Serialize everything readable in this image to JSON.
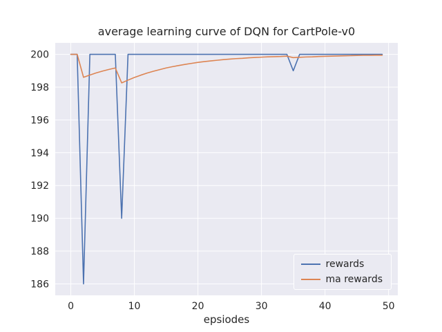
{
  "chart_data": {
    "type": "line",
    "title": "average learning curve of DQN for CartPole-v0",
    "xlabel": "epsiodes",
    "ylabel": "",
    "grid": true,
    "legend_position": "lower right",
    "plot_bg": "#eaeaf2",
    "grid_color": "#ffffff",
    "text_color": "#262626",
    "xlim": [
      -2.45,
      51.45
    ],
    "ylim": [
      185.3,
      200.7
    ],
    "xticks": [
      0,
      10,
      20,
      30,
      40,
      50
    ],
    "yticks": [
      186,
      188,
      190,
      192,
      194,
      196,
      198,
      200
    ],
    "x": [
      0,
      1,
      2,
      3,
      4,
      5,
      6,
      7,
      8,
      9,
      10,
      11,
      12,
      13,
      14,
      15,
      16,
      17,
      18,
      19,
      20,
      21,
      22,
      23,
      24,
      25,
      26,
      27,
      28,
      29,
      30,
      31,
      32,
      33,
      34,
      35,
      36,
      37,
      38,
      39,
      40,
      41,
      42,
      43,
      44,
      45,
      46,
      47,
      48,
      49
    ],
    "series": [
      {
        "name": "rewards",
        "color": "#4c72b0",
        "values": [
          200,
          200,
          186,
          200,
          200,
          200,
          200,
          200,
          190,
          200,
          200,
          200,
          200,
          200,
          200,
          200,
          200,
          200,
          200,
          200,
          200,
          200,
          200,
          200,
          200,
          200,
          200,
          200,
          200,
          200,
          200,
          200,
          200,
          200,
          200,
          199,
          200,
          200,
          200,
          200,
          200,
          200,
          200,
          200,
          200,
          200,
          200,
          200,
          200,
          200
        ]
      },
      {
        "name": "ma rewards",
        "color": "#dd8452",
        "values": [
          200,
          200,
          198.6,
          198.74,
          198.87,
          198.98,
          199.08,
          199.17,
          198.26,
          198.43,
          198.59,
          198.73,
          198.86,
          198.97,
          199.07,
          199.17,
          199.25,
          199.32,
          199.39,
          199.45,
          199.51,
          199.56,
          199.6,
          199.64,
          199.68,
          199.71,
          199.74,
          199.76,
          199.79,
          199.81,
          199.83,
          199.85,
          199.86,
          199.87,
          199.89,
          199.8,
          199.82,
          199.84,
          199.85,
          199.87,
          199.88,
          199.89,
          199.9,
          199.91,
          199.92,
          199.93,
          199.94,
          199.94,
          199.95,
          199.95
        ]
      }
    ]
  }
}
